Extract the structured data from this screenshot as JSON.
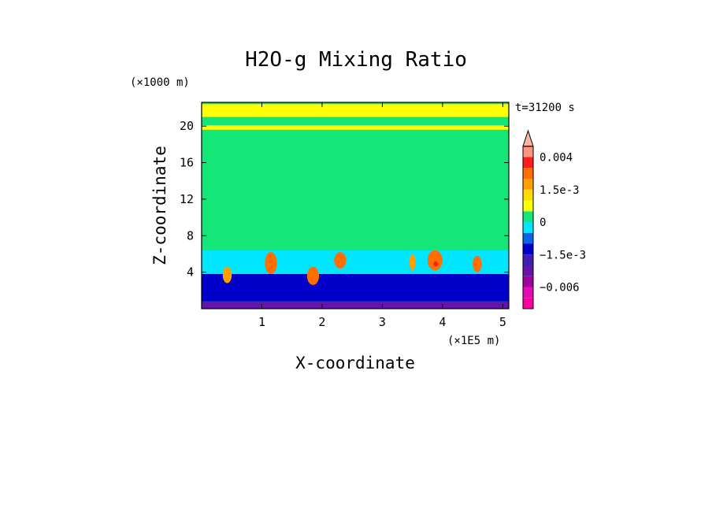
{
  "chart_data": {
    "type": "heatmap",
    "title": "H2O-g Mixing Ratio",
    "xlabel": "X-coordinate",
    "ylabel": "Z-coordinate",
    "x_unit": "(×1E5 m)",
    "y_unit": "(×1000 m)",
    "time_label": "t=31200 s",
    "xlim": [
      0.0,
      5.1
    ],
    "ylim": [
      0,
      22.6
    ],
    "x_ticks": [
      1,
      2,
      3,
      4,
      5
    ],
    "x_tick_labels": [
      "1",
      "2",
      "3",
      "4",
      "5"
    ],
    "y_ticks": [
      4,
      8,
      12,
      16,
      20
    ],
    "y_tick_labels": [
      "4",
      "8",
      "12",
      "16",
      "20"
    ],
    "colorbar": {
      "labels": [
        {
          "value": 0.004,
          "text": "0.004"
        },
        {
          "value": 0.0015,
          "text": "1.5e-3"
        },
        {
          "value": 0,
          "text": "0"
        },
        {
          "value": -0.0015,
          "text": "−1.5e-3"
        },
        {
          "value": -0.006,
          "text": "−0.006"
        }
      ],
      "levels": [
        {
          "min": -0.009,
          "max": -0.0075,
          "color": "#ff00a0"
        },
        {
          "min": -0.0075,
          "max": -0.006,
          "color": "#e60ab4"
        },
        {
          "min": -0.006,
          "max": -0.0045,
          "color": "#a000a0"
        },
        {
          "min": -0.0045,
          "max": -0.003,
          "color": "#6414aa"
        },
        {
          "min": -0.003,
          "max": -0.0015,
          "color": "#3c1eb4"
        },
        {
          "min": -0.0015,
          "max": -0.001,
          "color": "#0000c8"
        },
        {
          "min": -0.001,
          "max": -0.0005,
          "color": "#0a64e6"
        },
        {
          "min": -0.0005,
          "max": 0.0,
          "color": "#00e6ff"
        },
        {
          "min": 0.0,
          "max": 0.0005,
          "color": "#14e678"
        },
        {
          "min": 0.0005,
          "max": 0.001,
          "color": "#ffff00"
        },
        {
          "min": 0.001,
          "max": 0.0015,
          "color": "#ffdc00"
        },
        {
          "min": 0.0015,
          "max": 0.002,
          "color": "#ffa000"
        },
        {
          "min": 0.002,
          "max": 0.003,
          "color": "#ff6e00"
        },
        {
          "min": 0.003,
          "max": 0.004,
          "color": "#ff1e1e"
        },
        {
          "min": 0.004,
          "max": 0.005,
          "color": "#ff9480"
        },
        {
          "min": 0.005,
          "max": null,
          "color": "#ffb4a0"
        }
      ]
    },
    "background_color": "#14e678",
    "regions": [
      {
        "name": "surface-dry",
        "color": "#6414aa",
        "x": [
          0.0,
          5.1
        ],
        "y": [
          0.0,
          0.8
        ]
      },
      {
        "name": "low-dry",
        "color": "#0000c8",
        "x": [
          0.0,
          5.1
        ],
        "y": [
          0.8,
          3.8
        ]
      },
      {
        "name": "shallow-negative",
        "color": "#00e6ff",
        "x": [
          0.0,
          5.1
        ],
        "y": [
          3.8,
          6.4
        ]
      },
      {
        "name": "upper-band",
        "color": "#ffff00",
        "x": [
          0.0,
          5.1
        ],
        "y": [
          19.6,
          20.1
        ]
      },
      {
        "name": "top-band",
        "color": "#ffff00",
        "x": [
          0.0,
          5.1
        ],
        "y": [
          21.0,
          22.4
        ]
      },
      {
        "name": "moist-blob",
        "color": "#ff6e00",
        "x": [
          1.05,
          1.25
        ],
        "y": [
          3.8,
          6.2
        ]
      },
      {
        "name": "moist-blob",
        "color": "#ff6e00",
        "x": [
          1.75,
          1.95
        ],
        "y": [
          2.6,
          4.6
        ]
      },
      {
        "name": "moist-blob",
        "color": "#ff6e00",
        "x": [
          2.2,
          2.4
        ],
        "y": [
          4.4,
          6.2
        ]
      },
      {
        "name": "moist-blob",
        "color": "#ff6e00",
        "x": [
          3.75,
          4.0
        ],
        "y": [
          4.2,
          6.4
        ]
      },
      {
        "name": "moist-blob",
        "color": "#ff6e00",
        "x": [
          4.5,
          4.65
        ],
        "y": [
          4.0,
          5.8
        ]
      },
      {
        "name": "moist-blob",
        "color": "#ffa000",
        "x": [
          0.35,
          0.5
        ],
        "y": [
          2.8,
          4.6
        ]
      },
      {
        "name": "moist-blob",
        "color": "#ffa000",
        "x": [
          3.45,
          3.55
        ],
        "y": [
          4.2,
          6.0
        ]
      },
      {
        "name": "moist-core",
        "color": "#ff1e1e",
        "x": [
          3.85,
          3.92
        ],
        "y": [
          4.6,
          5.2
        ]
      }
    ]
  }
}
